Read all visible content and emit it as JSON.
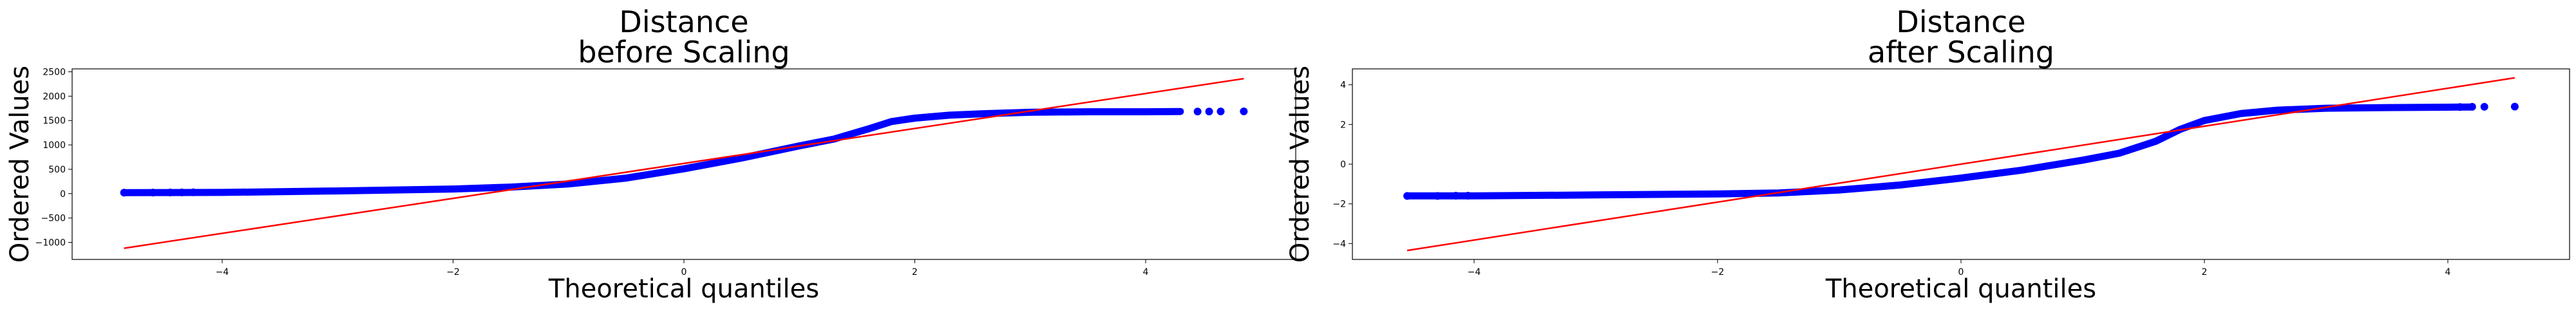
{
  "chart_data": [
    {
      "type": "scatter",
      "title_lines": [
        "Distance",
        "before Scaling"
      ],
      "xlabel": "Theoretical quantiles",
      "ylabel": "Ordered Values",
      "xlim": [
        -5.3,
        5.3
      ],
      "ylim": [
        -1350,
        2560
      ],
      "xticks": [
        -4,
        -2,
        0,
        2,
        4
      ],
      "xtick_labels": [
        "−4",
        "−2",
        "0",
        "2",
        "4"
      ],
      "yticks": [
        -1000,
        -500,
        0,
        500,
        1000,
        1500,
        2000,
        2500
      ],
      "ytick_labels": [
        "−1000",
        "−500",
        "0",
        "500",
        "1000",
        "1500",
        "2000",
        "2500"
      ],
      "points_color": "#0000ff",
      "fit_line_color": "#ff0000",
      "fit_line": {
        "x": [
          -4.85,
          4.85
        ],
        "y": [
          -1120,
          2360
        ]
      },
      "quantile_curve": {
        "x": [
          -4.85,
          -4.0,
          -3.0,
          -2.0,
          -1.5,
          -1.0,
          -0.5,
          0.0,
          0.5,
          1.0,
          1.3,
          1.6,
          1.8,
          2.0,
          2.3,
          2.6,
          3.0,
          3.5,
          4.0,
          4.3
        ],
        "y": [
          20,
          25,
          55,
          95,
          135,
          200,
          320,
          510,
          730,
          980,
          1120,
          1330,
          1480,
          1550,
          1610,
          1640,
          1670,
          1680,
          1680,
          1685
        ]
      },
      "outlier_points": {
        "x": [
          -4.85,
          -4.6,
          -4.45,
          -4.35,
          -4.25,
          4.45,
          4.55,
          4.65,
          4.85
        ],
        "y": [
          20,
          22,
          23,
          25,
          27,
          1685,
          1685,
          1686,
          1688
        ]
      },
      "grid": false,
      "legend": "none"
    },
    {
      "type": "scatter",
      "title_lines": [
        "Distance",
        "after Scaling"
      ],
      "xlabel": "Theoretical quantiles",
      "ylabel": "Ordered Values",
      "xlim": [
        -5.0,
        5.0
      ],
      "ylim": [
        -4.8,
        4.8
      ],
      "xticks": [
        -4,
        -2,
        0,
        2,
        4
      ],
      "xtick_labels": [
        "−4",
        "−2",
        "0",
        "2",
        "4"
      ],
      "yticks": [
        -4,
        -2,
        0,
        2,
        4
      ],
      "ytick_labels": [
        "−4",
        "−2",
        "0",
        "2",
        "4"
      ],
      "points_color": "#0000ff",
      "fit_line_color": "#ff0000",
      "fit_line": {
        "x": [
          -4.55,
          4.55
        ],
        "y": [
          -4.35,
          4.35
        ]
      },
      "quantile_curve": {
        "x": [
          -4.55,
          -4.0,
          -3.0,
          -2.0,
          -1.5,
          -1.0,
          -0.5,
          0.0,
          0.5,
          1.0,
          1.3,
          1.6,
          1.8,
          2.0,
          2.3,
          2.6,
          3.0,
          3.5,
          4.0,
          4.2
        ],
        "y": [
          -1.6,
          -1.6,
          -1.55,
          -1.5,
          -1.45,
          -1.3,
          -1.05,
          -0.7,
          -0.3,
          0.2,
          0.55,
          1.15,
          1.75,
          2.2,
          2.55,
          2.72,
          2.82,
          2.85,
          2.87,
          2.88
        ]
      },
      "outlier_points": {
        "x": [
          -4.55,
          -4.3,
          -4.15,
          -4.05,
          4.1,
          4.2,
          4.3,
          4.55
        ],
        "y": [
          -1.6,
          -1.6,
          -1.59,
          -1.59,
          2.88,
          2.89,
          2.89,
          2.9
        ]
      },
      "grid": false,
      "legend": "none"
    }
  ]
}
